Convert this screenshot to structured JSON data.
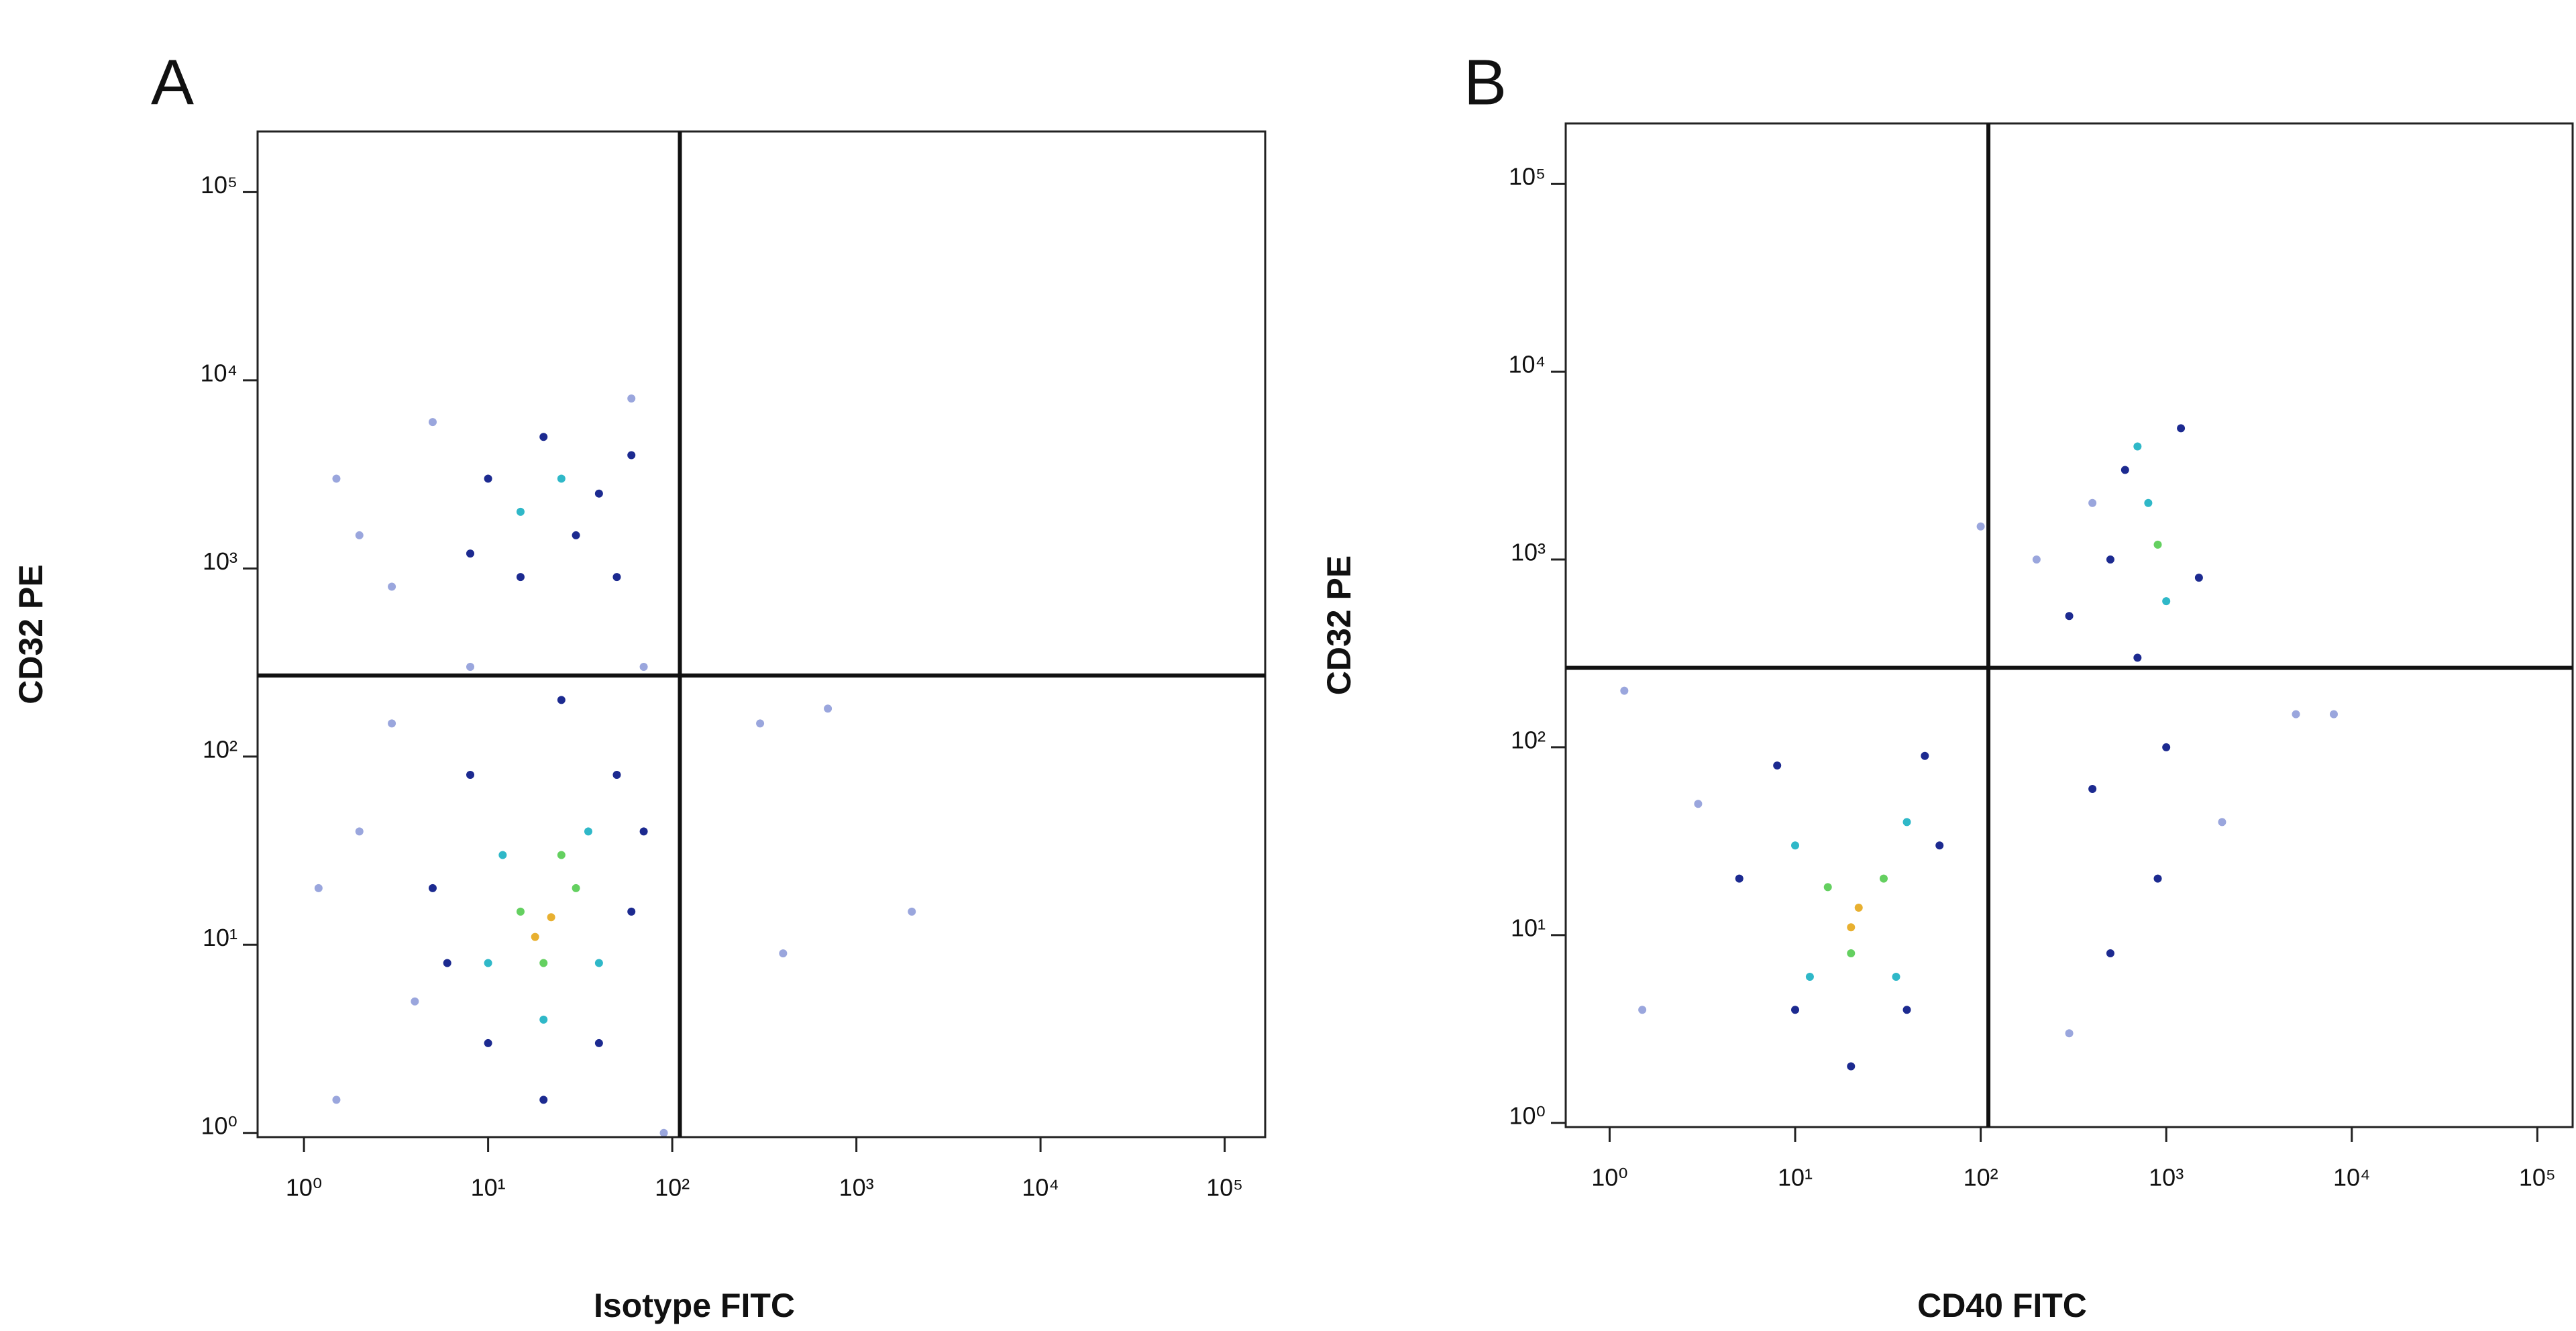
{
  "chart_data": [
    {
      "type": "scatter",
      "panel_label": "A",
      "x_label": "Isotype FITC",
      "y_label": "CD32 PE",
      "log_x": true,
      "log_y": true,
      "xlim": [
        0.56,
        166000
      ],
      "ylim": [
        0.95,
        210000
      ],
      "xticks": [
        {
          "value": 1,
          "label": "10⁰"
        },
        {
          "value": 10,
          "label": "10¹"
        },
        {
          "value": 100,
          "label": "10²"
        },
        {
          "value": 1000,
          "label": "10³"
        },
        {
          "value": 10000,
          "label": "10⁴"
        },
        {
          "value": 100000,
          "label": "10⁵"
        }
      ],
      "yticks": [
        {
          "value": 1,
          "label": "10⁰"
        },
        {
          "value": 10,
          "label": "10¹"
        },
        {
          "value": 100,
          "label": "10²"
        },
        {
          "value": 1000,
          "label": "10³"
        },
        {
          "value": 10000,
          "label": "10⁴"
        },
        {
          "value": 100000,
          "label": "10⁵"
        }
      ],
      "quadrant": {
        "x": 110,
        "y": 270
      },
      "series": [
        {
          "color": "#9aa6dd",
          "x": [
            2,
            3,
            1.5,
            5,
            60,
            3,
            2,
            4,
            90,
            1.2,
            8,
            70,
            1.5,
            300,
            700,
            2000,
            400
          ],
          "y": [
            1500,
            800,
            3000,
            6000,
            8000,
            150,
            40,
            5,
            1,
            20,
            300,
            300,
            1.5,
            150,
            180,
            15,
            9
          ]
        },
        {
          "color": "#1c2a90",
          "x": [
            10,
            20,
            40,
            15,
            50,
            30,
            8,
            60,
            5,
            60,
            10,
            40,
            8,
            50,
            25,
            70,
            6,
            20
          ],
          "y": [
            3000,
            5000,
            2500,
            900,
            900,
            1500,
            1200,
            4000,
            20,
            15,
            3,
            3,
            80,
            80,
            200,
            40,
            8,
            1.5
          ]
        },
        {
          "color": "#2fb8c8",
          "x": [
            15,
            25,
            12,
            35,
            10,
            40,
            20
          ],
          "y": [
            2000,
            3000,
            30,
            40,
            8,
            8,
            4
          ]
        },
        {
          "color": "#64d060",
          "x": [
            15,
            30,
            20,
            25
          ],
          "y": [
            15,
            20,
            8,
            30
          ]
        },
        {
          "color": "#e8b030",
          "x": [
            22,
            18
          ],
          "y": [
            14,
            11
          ]
        }
      ]
    },
    {
      "type": "scatter",
      "panel_label": "B",
      "x_label": "CD40 FITC",
      "y_label": "CD32 PE",
      "log_x": true,
      "log_y": true,
      "xlim": [
        0.58,
        155000
      ],
      "ylim": [
        0.95,
        210000
      ],
      "xticks": [
        {
          "value": 1,
          "label": "10⁰"
        },
        {
          "value": 10,
          "label": "10¹"
        },
        {
          "value": 100,
          "label": "10²"
        },
        {
          "value": 1000,
          "label": "10³"
        },
        {
          "value": 10000,
          "label": "10⁴"
        },
        {
          "value": 100000,
          "label": "10⁵"
        }
      ],
      "yticks": [
        {
          "value": 1,
          "label": "10⁰"
        },
        {
          "value": 10,
          "label": "10¹"
        },
        {
          "value": 100,
          "label": "10²"
        },
        {
          "value": 1000,
          "label": "10³"
        },
        {
          "value": 10000,
          "label": "10⁴"
        },
        {
          "value": 100000,
          "label": "10⁵"
        }
      ],
      "quadrant": {
        "x": 110,
        "y": 265
      },
      "series": [
        {
          "color": "#9aa6dd",
          "x": [
            1.5,
            3,
            1.2,
            200,
            400,
            5000,
            2000,
            300,
            100,
            8000
          ],
          "y": [
            4,
            50,
            200,
            1000,
            2000,
            150,
            40,
            3,
            1500,
            150
          ]
        },
        {
          "color": "#1c2a90",
          "x": [
            5,
            60,
            10,
            40,
            8,
            50,
            20,
            600,
            1200,
            500,
            1500,
            700,
            400,
            900,
            500,
            1000,
            300
          ],
          "y": [
            20,
            30,
            4,
            4,
            80,
            90,
            2,
            3000,
            5000,
            1000,
            800,
            300,
            60,
            20,
            8,
            100,
            500
          ]
        },
        {
          "color": "#2fb8c8",
          "x": [
            10,
            40,
            12,
            35,
            800,
            1000,
            700
          ],
          "y": [
            30,
            40,
            6,
            6,
            2000,
            600,
            4000
          ]
        },
        {
          "color": "#64d060",
          "x": [
            15,
            30,
            20,
            900
          ],
          "y": [
            18,
            20,
            8,
            1200
          ]
        },
        {
          "color": "#e8b030",
          "x": [
            22,
            20
          ],
          "y": [
            14,
            11
          ]
        }
      ]
    }
  ]
}
